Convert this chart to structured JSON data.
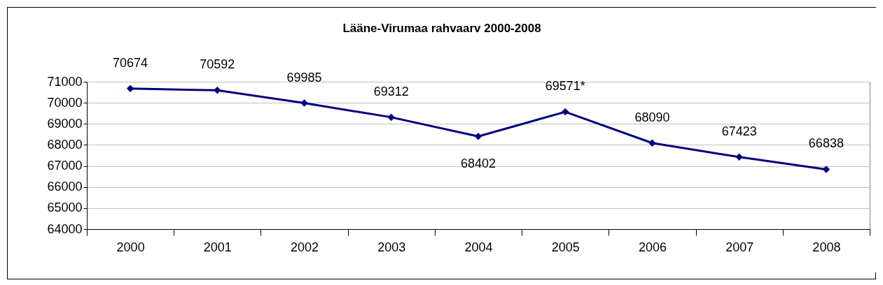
{
  "chart_data": {
    "type": "line",
    "title": "Lääne-Virumaa rahvaarv 2000-2008",
    "categories": [
      "2000",
      "2001",
      "2002",
      "2003",
      "2004",
      "2005",
      "2006",
      "2007",
      "2008"
    ],
    "series": [
      {
        "color": "#000080",
        "values": [
          70674,
          70592,
          69985,
          69312,
          68402,
          69571,
          68090,
          67423,
          66838
        ],
        "value_labels": [
          "70674",
          "70592",
          "69985",
          "69312",
          "68402",
          "69571*",
          "68090",
          "67423",
          "66838"
        ]
      }
    ],
    "ylim": [
      64000,
      71000
    ],
    "yticks": [
      64000,
      65000,
      66000,
      67000,
      68000,
      69000,
      70000,
      71000
    ],
    "grid": "y",
    "marker": "diamond",
    "line_style": "solid"
  }
}
